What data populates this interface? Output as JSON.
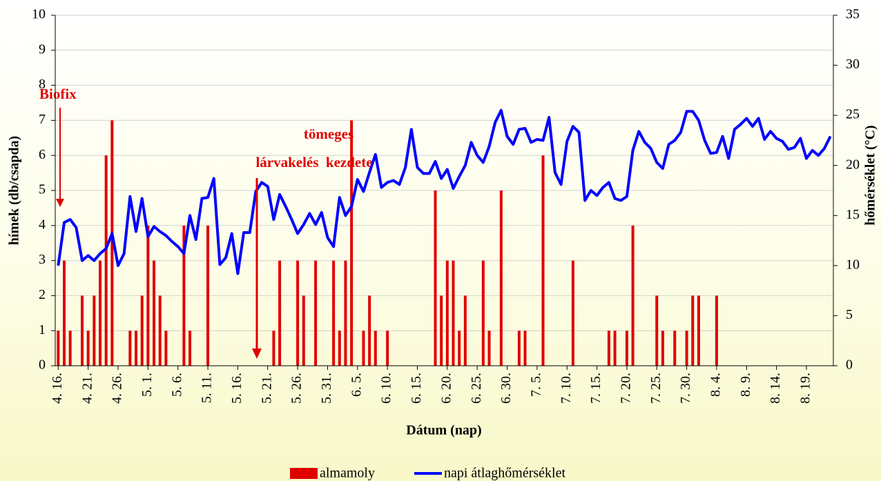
{
  "chart_data": {
    "type": "combo",
    "y_label": "hímek (db/csapda)",
    "y2_label": "hőmérséklet (°C)",
    "x_label": "Dátum (nap)",
    "annotations": [
      "Biofix",
      "tömeges",
      "lárvakelés  kezdete"
    ],
    "categories": [
      "4. 16.",
      null,
      null,
      null,
      null,
      "4. 21.",
      null,
      null,
      null,
      null,
      "4. 26.",
      null,
      null,
      null,
      null,
      "5. 1.",
      null,
      null,
      null,
      null,
      "5. 6.",
      null,
      null,
      null,
      null,
      "5. 11.",
      null,
      null,
      null,
      null,
      "5. 16.",
      null,
      null,
      null,
      null,
      "5. 21.",
      null,
      null,
      null,
      null,
      "5. 26.",
      null,
      null,
      null,
      null,
      "5. 31.",
      null,
      null,
      null,
      null,
      "6. 5.",
      null,
      null,
      null,
      null,
      "6. 10.",
      null,
      null,
      null,
      null,
      "6. 15.",
      null,
      null,
      null,
      null,
      "6. 20.",
      null,
      null,
      null,
      null,
      "6. 25.",
      null,
      null,
      null,
      null,
      "6. 30.",
      null,
      null,
      null,
      null,
      "7. 5.",
      null,
      null,
      null,
      null,
      "7. 10.",
      null,
      null,
      null,
      null,
      "7. 15.",
      null,
      null,
      null,
      null,
      "7. 20.",
      null,
      null,
      null,
      null,
      "7. 25.",
      null,
      null,
      null,
      null,
      "7. 30.",
      null,
      null,
      null,
      null,
      "8. 4.",
      null,
      null,
      null,
      null,
      "8. 9.",
      null,
      null,
      null,
      null,
      "8. 14.",
      null,
      null,
      null,
      null,
      "8. 19.",
      null,
      null,
      null,
      null
    ],
    "series": [
      {
        "name": "almamoly",
        "type": "bar",
        "color": "#e00000",
        "values": [
          1,
          3,
          1,
          0,
          2,
          1,
          2,
          3,
          6,
          7,
          0,
          0,
          1,
          1,
          2,
          4,
          3,
          2,
          1,
          0,
          0,
          4,
          1,
          0,
          0,
          4,
          0,
          0,
          0,
          0,
          0,
          0,
          0,
          0,
          0,
          0,
          1,
          3,
          0,
          0,
          3,
          2,
          0,
          3,
          0,
          0,
          3,
          1,
          3,
          7,
          0,
          1,
          2,
          1,
          0,
          1,
          0,
          0,
          0,
          0,
          0,
          0,
          0,
          5,
          2,
          3,
          3,
          1,
          2,
          0,
          0,
          3,
          1,
          0,
          5,
          0,
          0,
          1,
          1,
          0,
          0,
          6,
          0,
          0,
          0,
          0,
          3,
          0,
          0,
          0,
          0,
          0,
          1,
          1,
          0,
          1,
          4,
          0,
          0,
          0,
          2,
          1,
          0,
          1,
          0,
          1,
          2,
          2,
          0,
          0,
          2,
          0,
          0,
          0,
          0,
          0,
          0,
          0,
          0,
          0,
          0,
          0,
          0,
          0,
          0,
          0,
          0,
          0,
          0,
          0
        ]
      },
      {
        "name": "napi átlaghőmérséklet",
        "type": "line",
        "axis": "y2",
        "color": "#0000ff",
        "values": [
          10.0,
          14.3,
          14.6,
          13.8,
          10.5,
          11.0,
          10.5,
          11.2,
          11.7,
          13.2,
          10.0,
          11.2,
          16.9,
          13.4,
          16.7,
          12.9,
          13.9,
          13.4,
          13.0,
          12.4,
          11.9,
          11.2,
          15.0,
          12.6,
          16.7,
          16.8,
          18.7,
          10.1,
          10.8,
          13.2,
          9.2,
          13.3,
          13.3,
          17.4,
          18.3,
          17.9,
          14.6,
          17.1,
          15.9,
          14.6,
          13.2,
          14.1,
          15.2,
          14.1,
          15.3,
          12.8,
          11.9,
          16.8,
          15.0,
          15.9,
          18.6,
          17.4,
          19.3,
          21.1,
          17.8,
          18.3,
          18.5,
          18.1,
          19.8,
          23.6,
          19.8,
          19.2,
          19.2,
          20.4,
          18.7,
          19.6,
          17.7,
          18.9,
          20.0,
          22.3,
          21.0,
          20.3,
          21.9,
          24.3,
          25.5,
          22.9,
          22.1,
          23.6,
          23.7,
          22.3,
          22.6,
          22.5,
          24.8,
          19.3,
          18.1,
          22.4,
          23.9,
          23.3,
          16.5,
          17.5,
          17.0,
          17.8,
          18.3,
          16.7,
          16.5,
          16.9,
          21.5,
          23.4,
          22.3,
          21.7,
          20.3,
          19.7,
          22.1,
          22.5,
          23.3,
          25.4,
          25.4,
          24.5,
          22.5,
          21.2,
          21.3,
          22.9,
          20.7,
          23.6,
          24.1,
          24.7,
          23.9,
          24.7,
          22.6,
          23.4,
          22.7,
          22.4,
          21.6,
          21.8,
          22.7,
          20.7,
          21.5,
          21.0,
          21.7,
          22.9
        ]
      }
    ],
    "ylim": [
      0,
      10
    ],
    "yticks": [
      0,
      1,
      2,
      3,
      4,
      5,
      6,
      7,
      8,
      9,
      10
    ],
    "y2lim": [
      0,
      35
    ],
    "y2ticks": [
      0,
      5,
      10,
      15,
      20,
      25,
      30,
      35
    ],
    "grid": true
  }
}
